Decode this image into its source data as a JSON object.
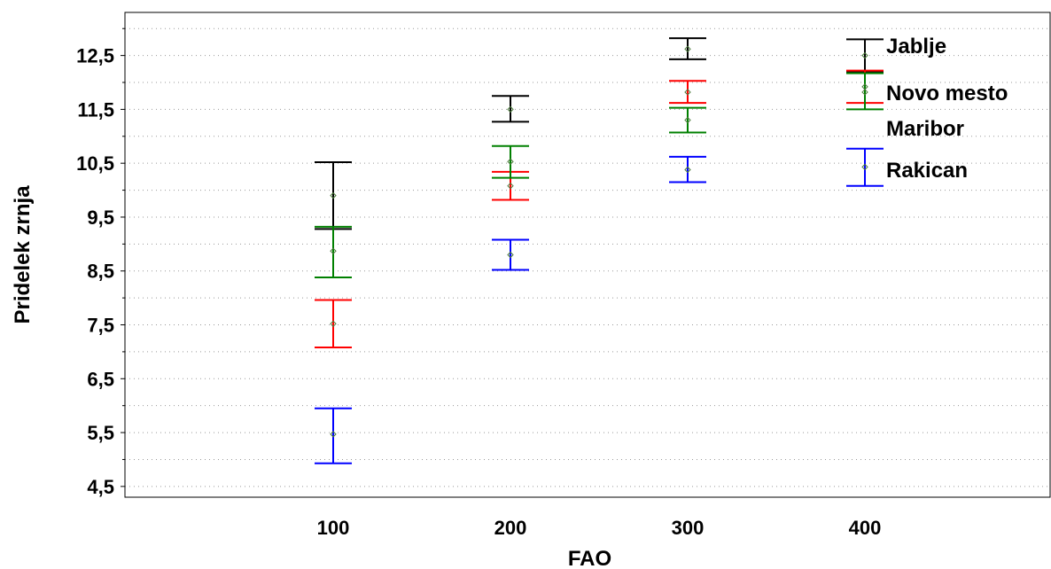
{
  "chart_data": {
    "type": "scatter",
    "title": "",
    "xlabel": "FAO",
    "ylabel": "Pridelek zrnja",
    "x_ticks": [
      "100",
      "200",
      "300",
      "400"
    ],
    "y_ticks": [
      "4,5",
      "5,5",
      "6,5",
      "7,5",
      "8,5",
      "9,5",
      "10,5",
      "11,5",
      "12,5"
    ],
    "x_categories": [
      100,
      200,
      300,
      400
    ],
    "ylim": [
      4.3,
      13.3
    ],
    "grid": true,
    "legend_position": "top-right",
    "error_bars": true,
    "series": [
      {
        "name": "Jablje",
        "color": "#000000",
        "points": [
          {
            "x": 100,
            "y": 9.9,
            "low": 9.28,
            "high": 10.52
          },
          {
            "x": 200,
            "y": 11.5,
            "low": 11.27,
            "high": 11.75
          },
          {
            "x": 300,
            "y": 12.62,
            "low": 12.43,
            "high": 12.82
          },
          {
            "x": 400,
            "y": 12.5,
            "low": 12.2,
            "high": 12.8
          }
        ]
      },
      {
        "name": "Novo mesto",
        "color": "#ff0000",
        "points": [
          {
            "x": 100,
            "y": 7.52,
            "low": 7.08,
            "high": 7.96
          },
          {
            "x": 200,
            "y": 10.08,
            "low": 9.82,
            "high": 10.34
          },
          {
            "x": 300,
            "y": 11.82,
            "low": 11.62,
            "high": 12.03
          },
          {
            "x": 400,
            "y": 11.92,
            "low": 11.62,
            "high": 12.22
          }
        ]
      },
      {
        "name": "Maribor",
        "color": "#008000",
        "points": [
          {
            "x": 100,
            "y": 8.87,
            "low": 8.38,
            "high": 9.32
          },
          {
            "x": 200,
            "y": 10.53,
            "low": 10.23,
            "high": 10.82
          },
          {
            "x": 300,
            "y": 11.3,
            "low": 11.07,
            "high": 11.53
          },
          {
            "x": 400,
            "y": 11.82,
            "low": 11.5,
            "high": 12.17
          }
        ]
      },
      {
        "name": "Rakican",
        "color": "#0000ff",
        "points": [
          {
            "x": 100,
            "y": 5.47,
            "low": 4.93,
            "high": 5.95
          },
          {
            "x": 200,
            "y": 8.8,
            "low": 8.52,
            "high": 9.08
          },
          {
            "x": 300,
            "y": 10.38,
            "low": 10.15,
            "high": 10.62
          },
          {
            "x": 400,
            "y": 10.43,
            "low": 10.08,
            "high": 10.77
          }
        ]
      }
    ]
  }
}
